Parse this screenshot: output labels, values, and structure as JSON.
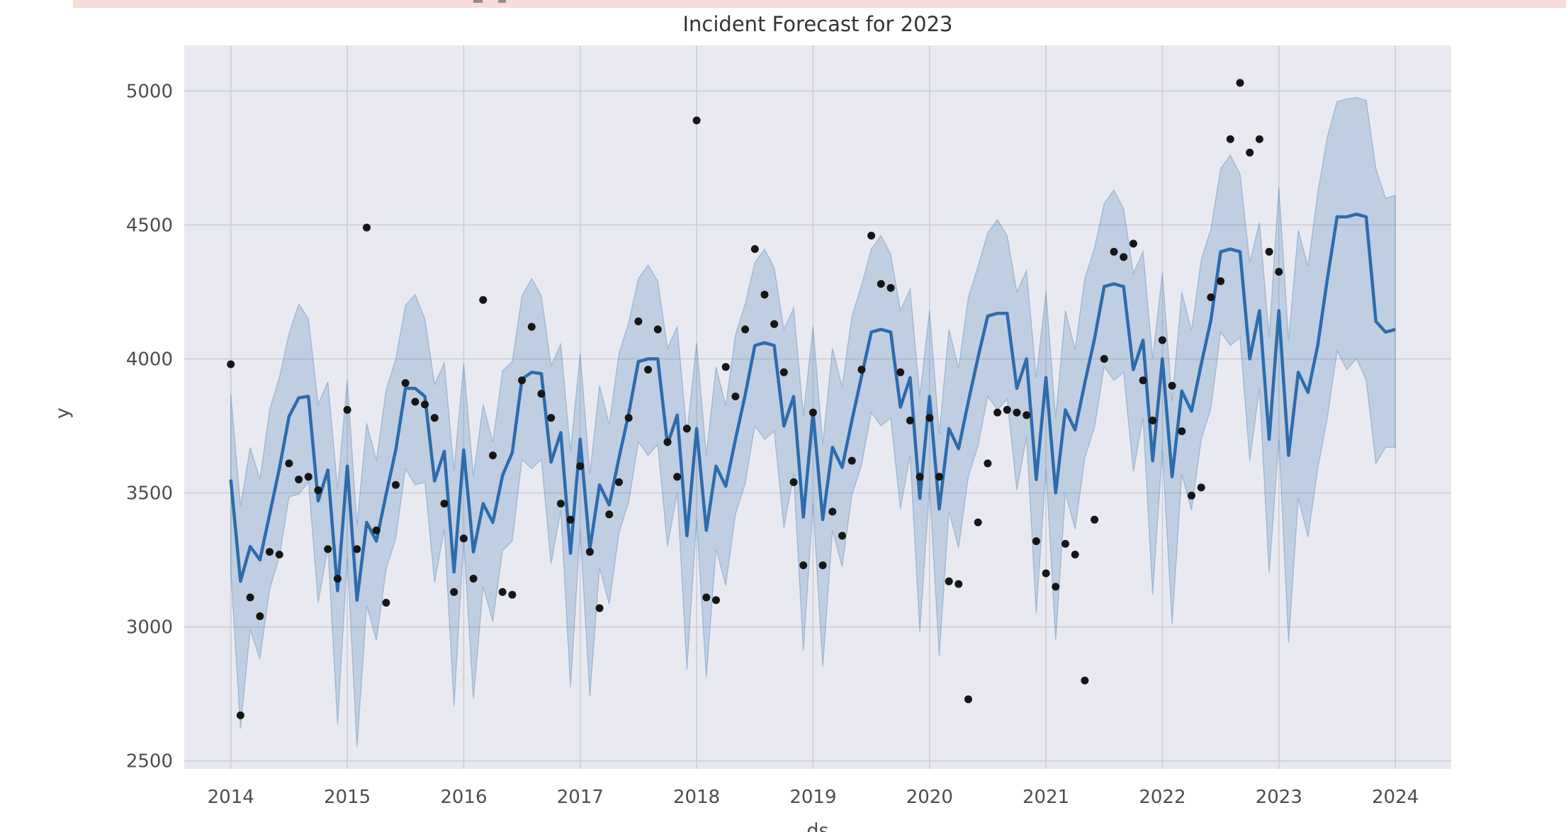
{
  "banner": {
    "visible": true,
    "cut_off_at_top": true,
    "color": "#f8dcda"
  },
  "colors": {
    "figure_background": "#ffffff",
    "plot_background": "#e9eaf1",
    "grid": "#cccdd5",
    "forecast_line": "#2d6cab",
    "uncertainty_band_fill": "rgba(45,108,171,0.22)",
    "uncertainty_band_edge": "rgba(45,108,171,0.28)",
    "points": "#161616",
    "tick_text": "#4d4d4d",
    "title_text": "#333333"
  },
  "chart_data": {
    "type": "line",
    "title": "Incident Forecast for 2023",
    "xlabel": "ds",
    "ylabel": "y",
    "grid": true,
    "legend_position": "none",
    "x_ticks": [
      2014,
      2015,
      2016,
      2017,
      2018,
      2019,
      2020,
      2021,
      2022,
      2023,
      2024
    ],
    "y_ticks": [
      2500,
      3000,
      3500,
      4000,
      4500,
      5000
    ],
    "xlim": [
      2013.6,
      2024.48
    ],
    "ylim": [
      2470,
      5170
    ],
    "start_year": 2014,
    "frequency": "monthly",
    "series": [
      {
        "name": "forecast-yhat",
        "type": "line",
        "first_point": "2014-01",
        "last_point": "2024-01",
        "values": [
          3550,
          3170,
          3300,
          3250,
          3420,
          3590,
          3785,
          3855,
          3860,
          3470,
          3585,
          3135,
          3600,
          3100,
          3390,
          3320,
          3495,
          3660,
          3890,
          3890,
          3860,
          3545,
          3655,
          3205,
          3660,
          3280,
          3460,
          3390,
          3565,
          3650,
          3925,
          3950,
          3945,
          3615,
          3725,
          3275,
          3700,
          3290,
          3530,
          3455,
          3630,
          3795,
          3990,
          4000,
          4000,
          3680,
          3790,
          3340,
          3740,
          3360,
          3600,
          3525,
          3700,
          3865,
          4050,
          4060,
          4050,
          3750,
          3860,
          3410,
          3800,
          3400,
          3670,
          3595,
          3770,
          3935,
          4100,
          4110,
          4100,
          3820,
          3930,
          3480,
          3860,
          3440,
          3740,
          3665,
          3840,
          4005,
          4160,
          4170,
          4170,
          3890,
          4000,
          3550,
          3930,
          3500,
          3810,
          3735,
          3910,
          4075,
          4270,
          4280,
          4270,
          3960,
          4070,
          3620,
          4000,
          3560,
          3880,
          3805,
          3980,
          4145,
          4400,
          4410,
          4400,
          4000,
          4180,
          3700,
          4180,
          3640,
          3950,
          3875,
          4050,
          4300,
          4530,
          4530,
          4540,
          4530,
          4140,
          4100,
          4110
        ]
      },
      {
        "name": "uncertainty-interval",
        "type": "band",
        "first_point": "2014-01",
        "last_point": "2024-01",
        "lower": [
          3210,
          2620,
          2990,
          2880,
          3140,
          3260,
          3485,
          3495,
          3540,
          3090,
          3295,
          2635,
          3260,
          2550,
          3080,
          2950,
          3215,
          3330,
          3590,
          3530,
          3540,
          3165,
          3365,
          2705,
          3320,
          2730,
          3150,
          3020,
          3285,
          3320,
          3625,
          3590,
          3625,
          3235,
          3435,
          2775,
          3360,
          2740,
          3220,
          3085,
          3350,
          3465,
          3690,
          3640,
          3680,
          3300,
          3500,
          2840,
          3400,
          2810,
          3290,
          3155,
          3420,
          3535,
          3750,
          3700,
          3730,
          3370,
          3570,
          2910,
          3460,
          2850,
          3360,
          3225,
          3490,
          3605,
          3800,
          3750,
          3780,
          3440,
          3640,
          2980,
          3520,
          2890,
          3430,
          3295,
          3560,
          3675,
          3860,
          3810,
          3850,
          3510,
          3710,
          3050,
          3590,
          2950,
          3500,
          3365,
          3630,
          3745,
          3970,
          3920,
          3950,
          3580,
          3780,
          3120,
          3660,
          3010,
          3570,
          3435,
          3700,
          3815,
          4100,
          4050,
          4080,
          3620,
          3890,
          3200,
          3700,
          2940,
          3480,
          3335,
          3590,
          3780,
          4030,
          3960,
          4000,
          3920,
          3610,
          3670,
          3670
        ],
        "upper": [
          3870,
          3450,
          3670,
          3550,
          3810,
          3930,
          4095,
          4205,
          4150,
          3830,
          3915,
          3515,
          3920,
          3380,
          3760,
          3620,
          3885,
          4000,
          4200,
          4240,
          4150,
          3905,
          3985,
          3585,
          3980,
          3560,
          3830,
          3690,
          3955,
          3990,
          4235,
          4300,
          4235,
          3975,
          4055,
          3655,
          4020,
          3570,
          3900,
          3755,
          4020,
          4135,
          4300,
          4350,
          4290,
          4040,
          4120,
          3720,
          4060,
          3640,
          3970,
          3825,
          4090,
          4205,
          4360,
          4410,
          4340,
          4110,
          4190,
          3790,
          4120,
          3680,
          4040,
          3895,
          4160,
          4275,
          4410,
          4460,
          4390,
          4180,
          4260,
          3860,
          4180,
          3720,
          4110,
          3965,
          4230,
          4345,
          4470,
          4520,
          4460,
          4250,
          4330,
          3930,
          4250,
          3780,
          4180,
          4035,
          4300,
          4415,
          4580,
          4630,
          4560,
          4320,
          4400,
          4000,
          4320,
          3840,
          4250,
          4105,
          4370,
          4485,
          4710,
          4760,
          4690,
          4360,
          4510,
          4080,
          4640,
          4070,
          4480,
          4345,
          4620,
          4830,
          4960,
          4970,
          4975,
          4965,
          4710,
          4600,
          4610
        ]
      },
      {
        "name": "actual-observations",
        "type": "scatter",
        "first_point": "2014-01",
        "last_point": "2023-01",
        "values": [
          3980,
          2670,
          3110,
          3040,
          3280,
          3270,
          3610,
          3550,
          3560,
          3510,
          3290,
          3180,
          3810,
          3290,
          4490,
          3360,
          3090,
          3530,
          3910,
          3840,
          3830,
          3780,
          3460,
          3130,
          3330,
          3180,
          4220,
          3640,
          3130,
          3120,
          3920,
          4120,
          3870,
          3780,
          3460,
          3400,
          3600,
          3280,
          3070,
          3420,
          3540,
          3780,
          4140,
          3960,
          4110,
          3690,
          3560,
          3740,
          4890,
          3110,
          3100,
          3970,
          3860,
          4110,
          4410,
          4240,
          4130,
          3950,
          3540,
          3230,
          3800,
          3230,
          3430,
          3340,
          3620,
          3960,
          4460,
          4280,
          4265,
          3950,
          3770,
          3560,
          3780,
          3560,
          3170,
          3160,
          2730,
          3390,
          3610,
          3800,
          3810,
          3800,
          3790,
          3320,
          3200,
          3150,
          3310,
          3270,
          2800,
          3400,
          4000,
          4400,
          4380,
          4430,
          3920,
          3770,
          4070,
          3900,
          3730,
          3490,
          3520,
          4230,
          4290,
          4820,
          5030,
          4770,
          4820,
          4400,
          4325
        ]
      }
    ]
  }
}
